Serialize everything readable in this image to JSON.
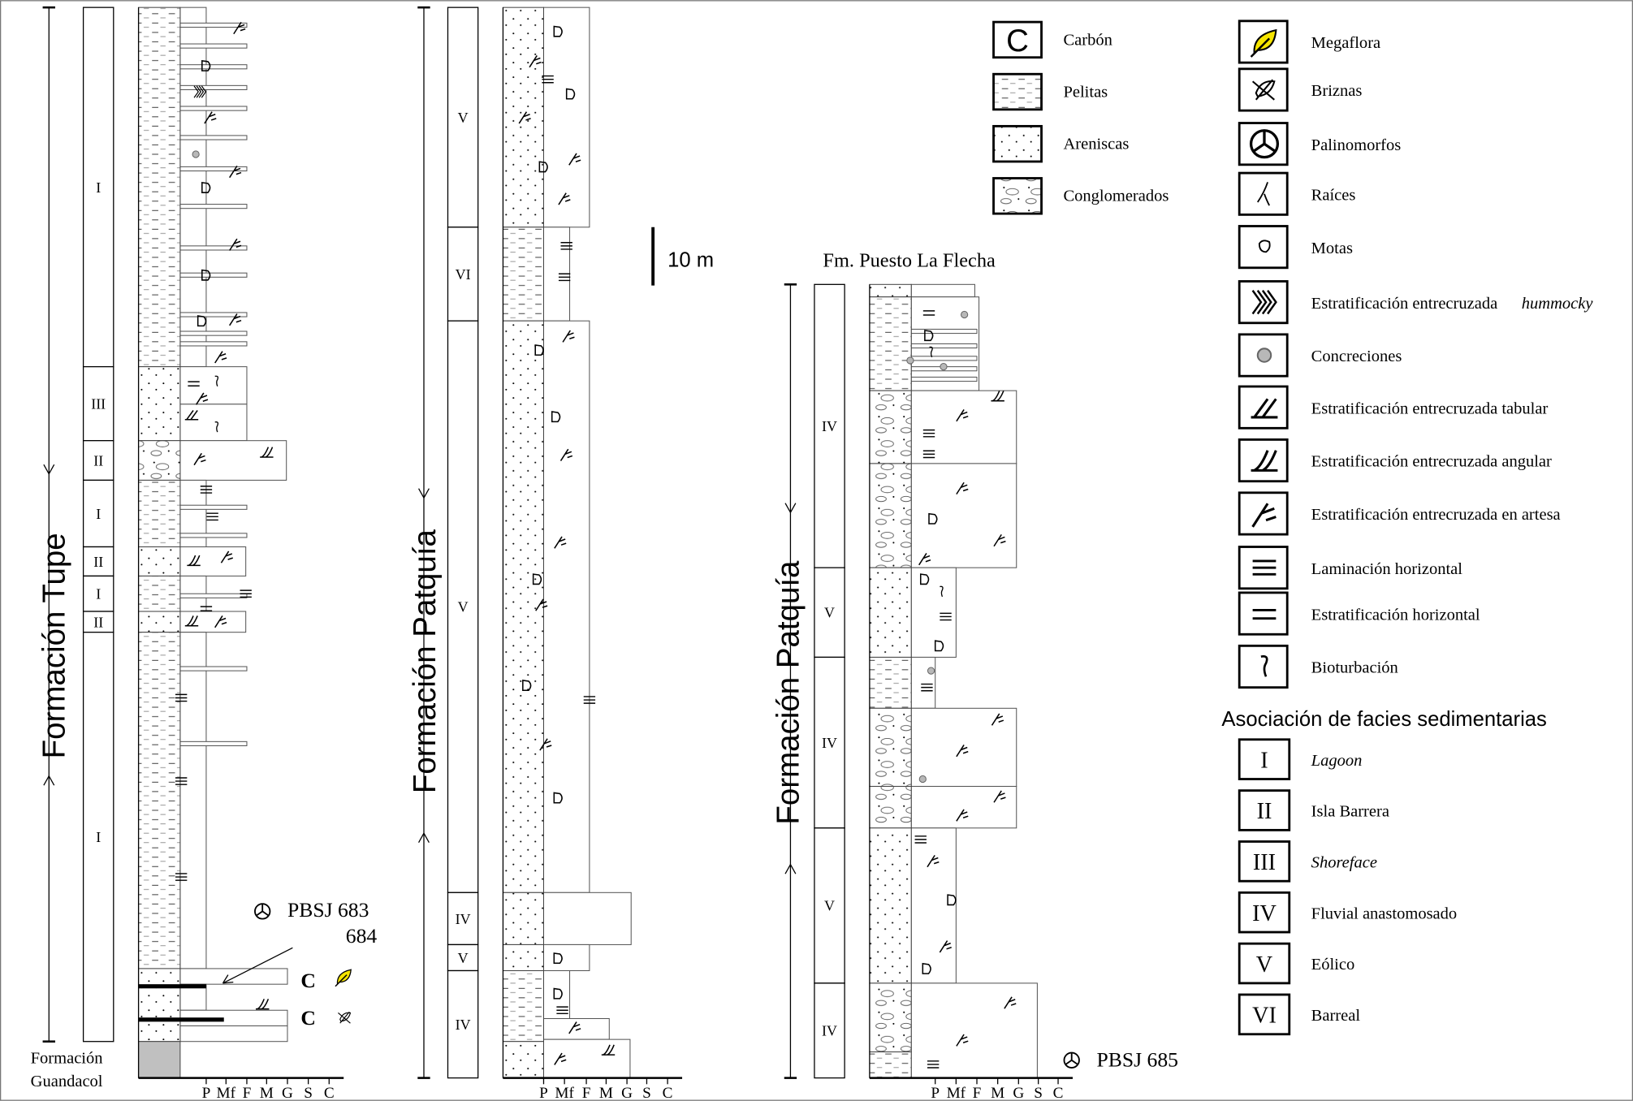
{
  "columns": [
    {
      "title": "Formación Tupe",
      "base_label_1": "Formación",
      "base_label_2": "Guandacol",
      "facies": [
        "I",
        "III",
        "II",
        "I",
        "II",
        "I",
        "II",
        "I"
      ],
      "sample_label_1": "PBSJ 683",
      "sample_label_2": "684",
      "coal_marks": [
        "C",
        "C"
      ]
    },
    {
      "title": "Formación Patquía",
      "facies": [
        "V",
        "VI",
        "V",
        "IV",
        "V",
        "IV"
      ]
    },
    {
      "title": "Formación Patquía",
      "top_label": "Fm. Puesto La Flecha",
      "facies": [
        "IV",
        "V",
        "IV",
        "V",
        "IV"
      ],
      "sample_label": "PBSJ 685"
    }
  ],
  "grain_axis": [
    "P",
    "Mf",
    "F",
    "M",
    "G",
    "S",
    "C"
  ],
  "scale_bar": "10 m",
  "legend": {
    "lithology": [
      {
        "icon": "carbon-icon",
        "label": "Carbón"
      },
      {
        "icon": "pelitas-icon",
        "label": "Pelitas"
      },
      {
        "icon": "areniscas-icon",
        "label": "Areniscas"
      },
      {
        "icon": "conglomerados-icon",
        "label": "Conglomerados"
      }
    ],
    "structures": [
      {
        "icon": "megaflora-icon",
        "label": "Megaflora"
      },
      {
        "icon": "briznas-icon",
        "label": "Briznas"
      },
      {
        "icon": "palinomorfos-icon",
        "label": "Palinomorfos"
      },
      {
        "icon": "raices-icon",
        "label": "Raíces"
      },
      {
        "icon": "motas-icon",
        "label": "Motas"
      },
      {
        "icon": "hummocky-icon",
        "label": "Estratificación entrecruzada ",
        "italic": "hummocky"
      },
      {
        "icon": "concreciones-icon",
        "label": "Concreciones"
      },
      {
        "icon": "tabular-icon",
        "label": "Estratificación entrecruzada tabular"
      },
      {
        "icon": "angular-icon",
        "label": "Estratificación entrecruzada angular"
      },
      {
        "icon": "artesa-icon",
        "label": "Estratificación entrecruzada en artesa"
      },
      {
        "icon": "laminacion-icon",
        "label": "Laminación horizontal"
      },
      {
        "icon": "estratificacion-horizontal-icon",
        "label": "Estratificación horizontal"
      },
      {
        "icon": "bioturbacion-icon",
        "label": "Bioturbación"
      }
    ],
    "facies_title": "Asociación de facies sedimentarias",
    "facies": [
      {
        "code": "I",
        "label": "Lagoon",
        "italic": true
      },
      {
        "code": "II",
        "label": "Isla Barrera",
        "italic": false
      },
      {
        "code": "III",
        "label": "Shoreface",
        "italic": true
      },
      {
        "code": "IV",
        "label": "Fluvial anastomosado",
        "italic": false
      },
      {
        "code": "V",
        "label": "Eólico",
        "italic": false
      },
      {
        "code": "VI",
        "label": "Barreal",
        "italic": false
      }
    ]
  },
  "colors": {
    "leaf": "#f5e400",
    "concretion": "#b8b8b8",
    "basement": "#c0c0c0"
  }
}
